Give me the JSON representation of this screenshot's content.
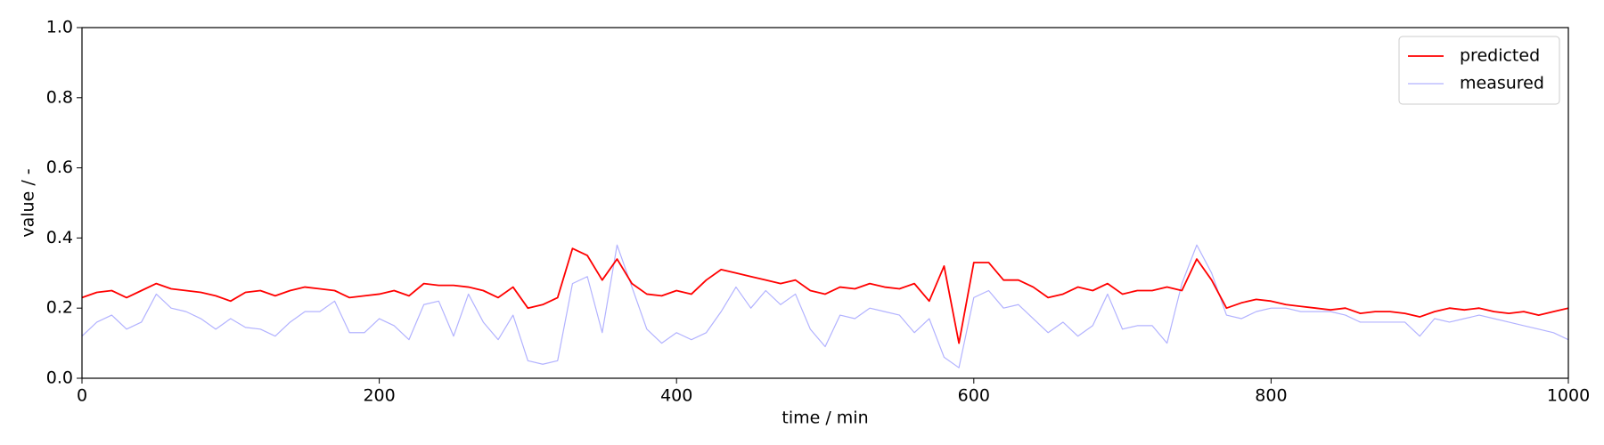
{
  "chart_data": {
    "type": "line",
    "xlabel": "time / min",
    "ylabel": "value / -",
    "x": [
      0,
      10,
      20,
      30,
      40,
      50,
      60,
      70,
      80,
      90,
      100,
      110,
      120,
      130,
      140,
      150,
      160,
      170,
      180,
      190,
      200,
      210,
      220,
      230,
      240,
      250,
      260,
      270,
      280,
      290,
      300,
      310,
      320,
      330,
      340,
      350,
      360,
      370,
      380,
      390,
      400,
      410,
      420,
      430,
      440,
      450,
      460,
      470,
      480,
      490,
      500,
      510,
      520,
      530,
      540,
      550,
      560,
      570,
      580,
      590,
      600,
      610,
      620,
      630,
      640,
      650,
      660,
      670,
      680,
      690,
      700,
      710,
      720,
      730,
      740,
      750,
      760,
      770,
      780,
      790,
      800,
      810,
      820,
      830,
      840,
      850,
      860,
      870,
      880,
      890,
      900,
      910,
      920,
      930,
      940,
      950,
      960,
      970,
      980,
      990,
      1000
    ],
    "series": [
      {
        "name": "predicted",
        "color": "#ff0000",
        "alpha": 1,
        "width": 1.8,
        "values": [
          0.23,
          0.245,
          0.25,
          0.23,
          0.25,
          0.27,
          0.255,
          0.25,
          0.245,
          0.235,
          0.22,
          0.245,
          0.25,
          0.235,
          0.25,
          0.26,
          0.255,
          0.25,
          0.23,
          0.235,
          0.24,
          0.25,
          0.235,
          0.27,
          0.265,
          0.265,
          0.26,
          0.25,
          0.23,
          0.26,
          0.2,
          0.21,
          0.23,
          0.37,
          0.35,
          0.28,
          0.34,
          0.27,
          0.24,
          0.235,
          0.25,
          0.24,
          0.28,
          0.31,
          0.3,
          0.29,
          0.28,
          0.27,
          0.28,
          0.25,
          0.24,
          0.26,
          0.255,
          0.27,
          0.26,
          0.255,
          0.27,
          0.22,
          0.32,
          0.1,
          0.33,
          0.33,
          0.28,
          0.28,
          0.26,
          0.23,
          0.24,
          0.26,
          0.25,
          0.27,
          0.24,
          0.25,
          0.25,
          0.26,
          0.25,
          0.34,
          0.28,
          0.2,
          0.215,
          0.225,
          0.22,
          0.21,
          0.205,
          0.2,
          0.195,
          0.2,
          0.185,
          0.19,
          0.19,
          0.185,
          0.175,
          0.19,
          0.2,
          0.195,
          0.2,
          0.19,
          0.185,
          0.19,
          0.18,
          0.19,
          0.2
        ]
      },
      {
        "name": "measured",
        "color": "#0000ff",
        "alpha": 0.3,
        "width": 1.2,
        "values": [
          0.12,
          0.16,
          0.18,
          0.14,
          0.16,
          0.24,
          0.2,
          0.19,
          0.17,
          0.14,
          0.17,
          0.145,
          0.14,
          0.12,
          0.16,
          0.19,
          0.19,
          0.22,
          0.13,
          0.13,
          0.17,
          0.15,
          0.11,
          0.21,
          0.22,
          0.12,
          0.24,
          0.16,
          0.11,
          0.18,
          0.05,
          0.04,
          0.05,
          0.27,
          0.29,
          0.13,
          0.38,
          0.26,
          0.14,
          0.1,
          0.13,
          0.11,
          0.13,
          0.19,
          0.26,
          0.2,
          0.25,
          0.21,
          0.24,
          0.14,
          0.09,
          0.18,
          0.17,
          0.2,
          0.19,
          0.18,
          0.13,
          0.17,
          0.06,
          0.03,
          0.23,
          0.25,
          0.2,
          0.21,
          0.17,
          0.13,
          0.16,
          0.12,
          0.15,
          0.24,
          0.14,
          0.15,
          0.15,
          0.1,
          0.27,
          0.38,
          0.3,
          0.18,
          0.17,
          0.19,
          0.2,
          0.2,
          0.19,
          0.19,
          0.19,
          0.18,
          0.16,
          0.16,
          0.16,
          0.16,
          0.12,
          0.17,
          0.16,
          0.17,
          0.18,
          0.17,
          0.16,
          0.15,
          0.14,
          0.13,
          0.11
        ]
      }
    ],
    "xlim": [
      0,
      1000
    ],
    "xticks": [
      0,
      200,
      400,
      600,
      800,
      1000
    ],
    "ylim": [
      0,
      1
    ],
    "yticks": [
      {
        "value": 0,
        "label": "0.0"
      },
      0.2,
      0.4,
      0.6,
      0.8,
      {
        "value": 1,
        "label": "1.0"
      }
    ],
    "grid": false,
    "legend": "upper right"
  }
}
